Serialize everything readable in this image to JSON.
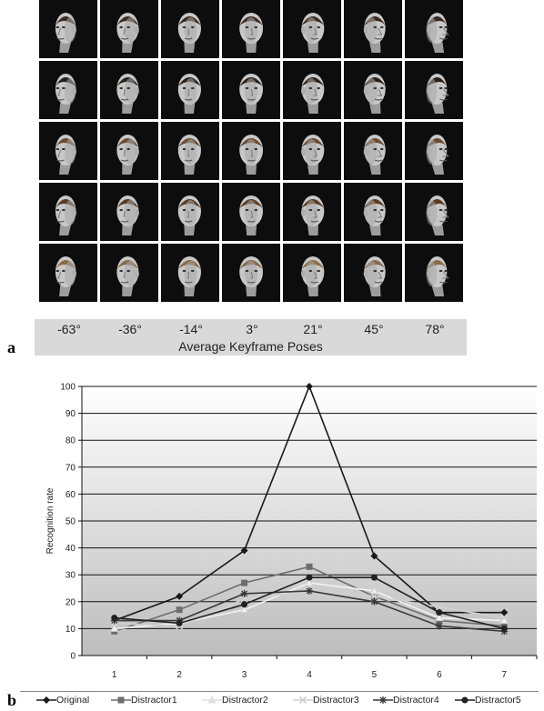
{
  "panel_a": {
    "letter": "a",
    "pose_labels": [
      "-63°",
      "-36°",
      "-14°",
      "3°",
      "21°",
      "45°",
      "78°"
    ],
    "axis_caption": "Average Keyframe Poses",
    "subjects": 5,
    "tile_background": "#0d0d0d"
  },
  "panel_b": {
    "letter": "b"
  },
  "chart_data": {
    "type": "line",
    "ylabel": "Recognition rate",
    "xlabel": "",
    "title": "",
    "x": [
      1,
      2,
      3,
      4,
      5,
      6,
      7
    ],
    "ylim": [
      0,
      100
    ],
    "yticks": [
      0,
      10,
      20,
      30,
      40,
      50,
      60,
      70,
      80,
      90,
      100
    ],
    "grid": true,
    "legend_position": "bottom",
    "series": [
      {
        "name": "Original",
        "values": [
          13,
          22,
          39,
          100,
          37,
          16,
          16
        ],
        "color": "#1a1a1a",
        "marker": "diamond"
      },
      {
        "name": "Distractor1",
        "values": [
          9,
          17,
          27,
          33,
          22,
          13,
          11
        ],
        "color": "#6e6e6e",
        "marker": "square"
      },
      {
        "name": "Distractor2",
        "values": [
          10,
          12,
          17,
          27,
          24,
          14,
          13
        ],
        "color": "#f2f2f2",
        "marker": "triangle"
      },
      {
        "name": "Distractor3",
        "values": [
          12,
          11,
          21,
          24,
          22,
          18,
          14
        ],
        "color": "#d0d0d0",
        "marker": "x"
      },
      {
        "name": "Distractor4",
        "values": [
          13,
          13,
          23,
          24,
          20,
          11,
          9
        ],
        "color": "#3a3a3a",
        "marker": "star"
      },
      {
        "name": "Distractor5",
        "values": [
          14,
          12,
          19,
          29,
          29,
          16,
          10
        ],
        "color": "#222222",
        "marker": "circle"
      }
    ]
  }
}
